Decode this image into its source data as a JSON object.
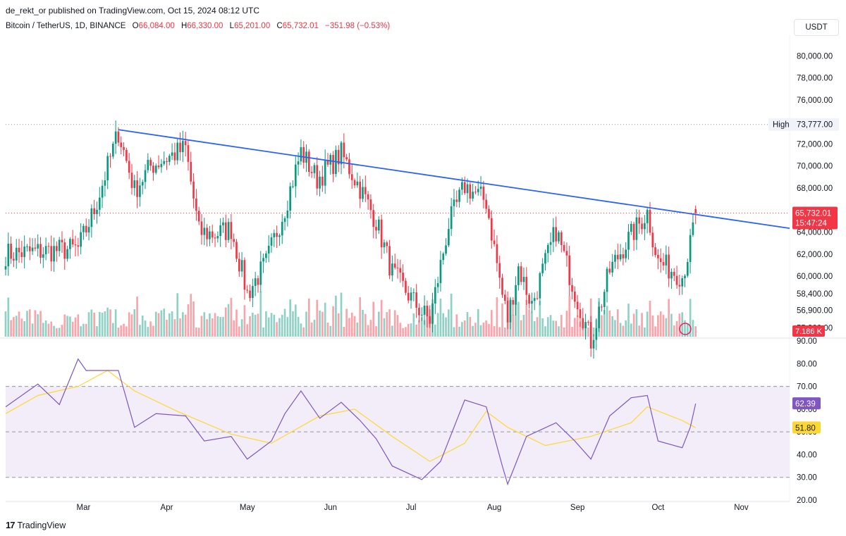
{
  "header": {
    "published": "de_rekt_or published on TradingView.com, Oct 15, 2024 08:12 UTC"
  },
  "legend": {
    "symbol": "Bitcoin / TetherUS, 1D, BINANCE",
    "open_label": "O",
    "open": "66,084.00",
    "high_label": "H",
    "high": "66,330.00",
    "low_label": "L",
    "low": "65,201.00",
    "close_label": "C",
    "close": "65,732.01",
    "change": "−351.98 (−0.53%)"
  },
  "currency_button": "USDT",
  "footer": {
    "brand": "TradingView",
    "logo": "17"
  },
  "colors": {
    "up": "#089981",
    "down": "#f23645",
    "trendline": "#2962ff",
    "rsi": "#7e57c2",
    "rsi_ma": "#fdd835",
    "rsi_band": "#ede7f6"
  },
  "chart_data": [
    {
      "type": "candlestick",
      "title": "Bitcoin / TetherUS, 1D, BINANCE",
      "x_tick_labels": [
        "Mar",
        "Apr",
        "May",
        "Jun",
        "Jul",
        "Aug",
        "Sep",
        "Oct",
        "Nov"
      ],
      "y_tick_labels": [
        "80,000.00",
        "78,000.00",
        "76,000.00",
        "72,000.00",
        "70,000.00",
        "68,000.00",
        "64,000.00",
        "62,000.00",
        "60,000.00",
        "58,400.00",
        "56,900.00",
        "55,300.00"
      ],
      "y_ticks": [
        80000,
        78000,
        76000,
        72000,
        70000,
        68000,
        64000,
        62000,
        60000,
        58400,
        56900,
        55300
      ],
      "ylim": [
        54500,
        81500
      ],
      "high_label": "High",
      "high_value": 73777,
      "high_value_label": "73,777.00",
      "last_price": 65732.01,
      "last_price_label": "65,732.01",
      "countdown": "15:47:24",
      "volume_label": "7.186 K",
      "trendline": [
        {
          "date": "2024-03-14",
          "price": 73300
        },
        {
          "date": "2024-10-15",
          "price": 65600
        }
      ],
      "series": [
        {
          "name": "price",
          "approx_closes": [
            [
              "2024-02-01",
              62000
            ],
            [
              "2024-02-28",
              62500
            ],
            [
              "2024-03-05",
              66000
            ],
            [
              "2024-03-14",
              73100
            ],
            [
              "2024-03-20",
              67800
            ],
            [
              "2024-03-26",
              70000
            ],
            [
              "2024-04-08",
              71600
            ],
            [
              "2024-04-13",
              64000
            ],
            [
              "2024-04-19",
              63800
            ],
            [
              "2024-04-25",
              64300
            ],
            [
              "2024-05-01",
              58400
            ],
            [
              "2024-05-08",
              61200
            ],
            [
              "2024-05-15",
              66200
            ],
            [
              "2024-05-21",
              71300
            ],
            [
              "2024-05-27",
              68800
            ],
            [
              "2024-06-05",
              71100
            ],
            [
              "2024-06-12",
              68000
            ],
            [
              "2024-06-18",
              65000
            ],
            [
              "2024-06-24",
              60300
            ],
            [
              "2024-07-05",
              56700
            ],
            [
              "2024-07-08",
              56000
            ],
            [
              "2024-07-15",
              64700
            ],
            [
              "2024-07-21",
              68200
            ],
            [
              "2024-07-29",
              66800
            ],
            [
              "2024-08-04",
              58300
            ],
            [
              "2024-08-06",
              56100
            ],
            [
              "2024-08-10",
              60800
            ],
            [
              "2024-08-15",
              57400
            ],
            [
              "2024-08-24",
              64200
            ],
            [
              "2024-08-31",
              58600
            ],
            [
              "2024-09-06",
              54100
            ],
            [
              "2024-09-13",
              60500
            ],
            [
              "2024-09-19",
              63000
            ],
            [
              "2024-09-27",
              65800
            ],
            [
              "2024-10-01",
              61300
            ],
            [
              "2024-10-10",
              60000
            ],
            [
              "2024-10-13",
              62800
            ],
            [
              "2024-10-15",
              65732
            ]
          ]
        }
      ]
    },
    {
      "type": "line",
      "title": "RSI",
      "y_tick_labels": [
        "90.00",
        "80.00",
        "70.00",
        "60.00",
        "50.00",
        "40.00",
        "30.00",
        "20.00"
      ],
      "y_ticks": [
        90,
        80,
        70,
        60,
        50,
        40,
        30,
        20
      ],
      "ylim": [
        20,
        90
      ],
      "band": [
        30,
        70
      ],
      "midline": 50,
      "rsi_value_label": "62.39",
      "rsi_ma_value_label": "51.80",
      "series": [
        {
          "name": "RSI",
          "values": [
            [
              "2024-02-01",
              61
            ],
            [
              "2024-02-13",
              71
            ],
            [
              "2024-02-21",
              62
            ],
            [
              "2024-02-28",
              82
            ],
            [
              "2024-03-02",
              77
            ],
            [
              "2024-03-14",
              77
            ],
            [
              "2024-03-20",
              52
            ],
            [
              "2024-03-28",
              58
            ],
            [
              "2024-04-08",
              57
            ],
            [
              "2024-04-15",
              46
            ],
            [
              "2024-04-25",
              48
            ],
            [
              "2024-05-01",
              38
            ],
            [
              "2024-05-10",
              46
            ],
            [
              "2024-05-15",
              58
            ],
            [
              "2024-05-21",
              68
            ],
            [
              "2024-05-28",
              56
            ],
            [
              "2024-06-05",
              63
            ],
            [
              "2024-06-12",
              55
            ],
            [
              "2024-06-18",
              47
            ],
            [
              "2024-06-24",
              35
            ],
            [
              "2024-07-05",
              29
            ],
            [
              "2024-07-12",
              37
            ],
            [
              "2024-07-21",
              64
            ],
            [
              "2024-07-29",
              61
            ],
            [
              "2024-08-04",
              35
            ],
            [
              "2024-08-06",
              27
            ],
            [
              "2024-08-13",
              48
            ],
            [
              "2024-08-24",
              54
            ],
            [
              "2024-08-31",
              46
            ],
            [
              "2024-09-06",
              38
            ],
            [
              "2024-09-13",
              57
            ],
            [
              "2024-09-21",
              65
            ],
            [
              "2024-09-27",
              66
            ],
            [
              "2024-10-01",
              46
            ],
            [
              "2024-10-10",
              43
            ],
            [
              "2024-10-13",
              52
            ],
            [
              "2024-10-15",
              62.4
            ]
          ]
        },
        {
          "name": "RSI-based MA",
          "values": [
            [
              "2024-02-01",
              58
            ],
            [
              "2024-02-13",
              66
            ],
            [
              "2024-02-28",
              70
            ],
            [
              "2024-03-10",
              77
            ],
            [
              "2024-03-20",
              68
            ],
            [
              "2024-04-05",
              59
            ],
            [
              "2024-04-25",
              49
            ],
            [
              "2024-05-10",
              45
            ],
            [
              "2024-05-28",
              57
            ],
            [
              "2024-06-10",
              60
            ],
            [
              "2024-06-24",
              48
            ],
            [
              "2024-07-08",
              37
            ],
            [
              "2024-07-21",
              45
            ],
            [
              "2024-07-29",
              59
            ],
            [
              "2024-08-06",
              52
            ],
            [
              "2024-08-20",
              44
            ],
            [
              "2024-09-06",
              48
            ],
            [
              "2024-09-21",
              54
            ],
            [
              "2024-09-27",
              61
            ],
            [
              "2024-10-10",
              55
            ],
            [
              "2024-10-15",
              51.8
            ]
          ]
        }
      ]
    }
  ]
}
